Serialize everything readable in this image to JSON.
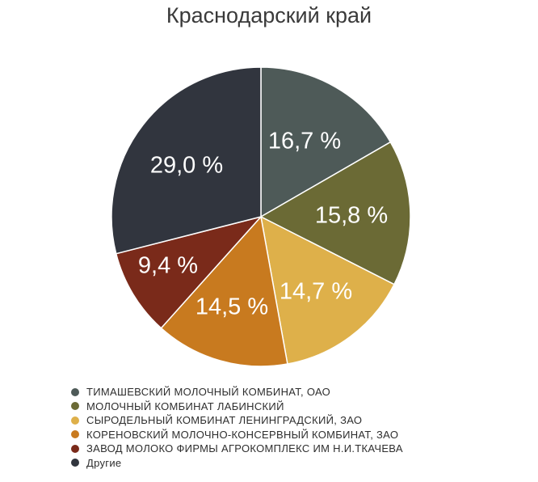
{
  "chart_data": {
    "type": "pie",
    "title": "Краснодарский край",
    "legend_position": "bottom",
    "slices": [
      {
        "name": "ТИМАШЕВСКИЙ МОЛОЧНЫЙ КОМБИНАТ, ОАО",
        "value": 16.7,
        "label": "16,7 %",
        "color": "#4e5a58"
      },
      {
        "name": "МОЛОЧНЫЙ КОМБИНАТ ЛАБИНСКИЙ",
        "value": 15.8,
        "label": "15,8 %",
        "color": "#6b6a35"
      },
      {
        "name": "СЫРОДЕЛЬНЫЙ КОМБИНАТ ЛЕНИНГРАДСКИЙ, ЗАО",
        "value": 14.7,
        "label": "14,7 %",
        "color": "#deb04a"
      },
      {
        "name": "КОРЕНОВСКИЙ МОЛОЧНО-КОНСЕРВНЫЙ КОМБИНАТ, ЗАО",
        "value": 14.5,
        "label": "14,5 %",
        "color": "#c87a1f"
      },
      {
        "name": "ЗАВОД МОЛОКО ФИРМЫ АГРОКОМПЛЕКС ИМ Н.И.ТКАЧЕВА",
        "value": 9.4,
        "label": "9,4 %",
        "color": "#7a2a1a"
      },
      {
        "name": "Другие",
        "value": 29.0,
        "label": "29,0 %",
        "color": "#31353e"
      }
    ]
  }
}
